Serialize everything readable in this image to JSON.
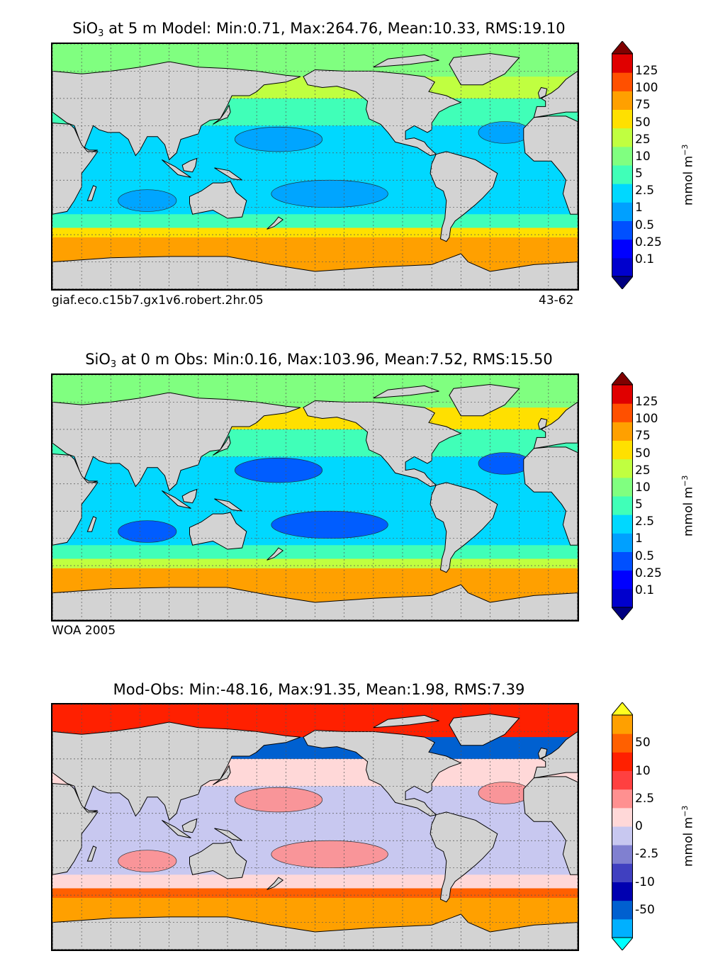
{
  "panels": [
    {
      "title_prefix": "SiO",
      "title_sub": "3",
      "title_rest": " at 5 m Model: Min:0.71, Max:264.76, Mean:10.33, RMS:19.10",
      "footer_left": "giaf.eco.c15b7.gx1v6.robert.2hr.05",
      "footer_right": "43-62",
      "colorbar_labels": [
        "125",
        "100",
        "75",
        "50",
        "25",
        "10",
        "5",
        "2.5",
        "1",
        "0.5",
        "0.25",
        "0.1"
      ],
      "colorbar_colors": [
        "#000080",
        "#0000cd",
        "#0000ff",
        "#0050ff",
        "#00a0ff",
        "#00d8ff",
        "#40ffb8",
        "#80ff80",
        "#c0ff40",
        "#ffe000",
        "#ffa000",
        "#ff5000",
        "#e00000",
        "#800000"
      ],
      "unit_label": "mmol m",
      "unit_exp": "−3"
    },
    {
      "title_prefix": "SiO",
      "title_sub": "3",
      "title_rest": " at 0 m Obs: Min:0.16, Max:103.96, Mean:7.52, RMS:15.50",
      "footer_left": "WOA 2005",
      "footer_right": "",
      "colorbar_labels": [
        "125",
        "100",
        "75",
        "50",
        "25",
        "10",
        "5",
        "2.5",
        "1",
        "0.5",
        "0.25",
        "0.1"
      ],
      "colorbar_colors": [
        "#000080",
        "#0000cd",
        "#0000ff",
        "#0050ff",
        "#00a0ff",
        "#00d8ff",
        "#40ffb8",
        "#80ff80",
        "#c0ff40",
        "#ffe000",
        "#ffa000",
        "#ff5000",
        "#e00000",
        "#800000"
      ],
      "unit_label": "mmol m",
      "unit_exp": "−3"
    },
    {
      "title_prefix": "Mod-Obs: Min:-48.16, Max:91.35, Mean:1.98, RMS:7.39",
      "title_sub": "",
      "title_rest": "",
      "footer_left": "",
      "footer_right": "",
      "colorbar_labels": [
        "50",
        "10",
        "2.5",
        "0",
        "-2.5",
        "-10",
        "-50"
      ],
      "colorbar_colors": [
        "#00ffff",
        "#00b0ff",
        "#0060d0",
        "#0000b0",
        "#4040c0",
        "#8080d0",
        "#c8c8f0",
        "#ffd8d8",
        "#ff9090",
        "#ff4040",
        "#ff2000",
        "#ff6000",
        "#ffa000",
        "#ffff20"
      ],
      "unit_label": "mmol m",
      "unit_exp": "−3"
    }
  ],
  "map_colors": {
    "land": "#d3d3d3",
    "panel1": {
      "arctic": "#80ff80",
      "north_pacific": "#c0ff40",
      "subtropics": "#40ffb8",
      "gyre": "#00d8ff",
      "gyre_core": "#00a0ff",
      "southern_band": "#ffe000",
      "antarctic": "#ffa000"
    },
    "panel2": {
      "arctic": "#80ff80",
      "north_pacific": "#ffe000",
      "subtropics": "#40ffb8",
      "gyre": "#00d8ff",
      "gyre_core": "#0050ff",
      "southern_band": "#c0ff40",
      "antarctic": "#ffa000"
    },
    "panel3": {
      "arctic": "#ff2000",
      "north_pacific": "#0060d0",
      "subtropics": "#ffd8d8",
      "gyre": "#c8c8f0",
      "gyre_core": "#ff9090",
      "southern_band": "#ff6000",
      "antarctic": "#ffa000"
    }
  }
}
